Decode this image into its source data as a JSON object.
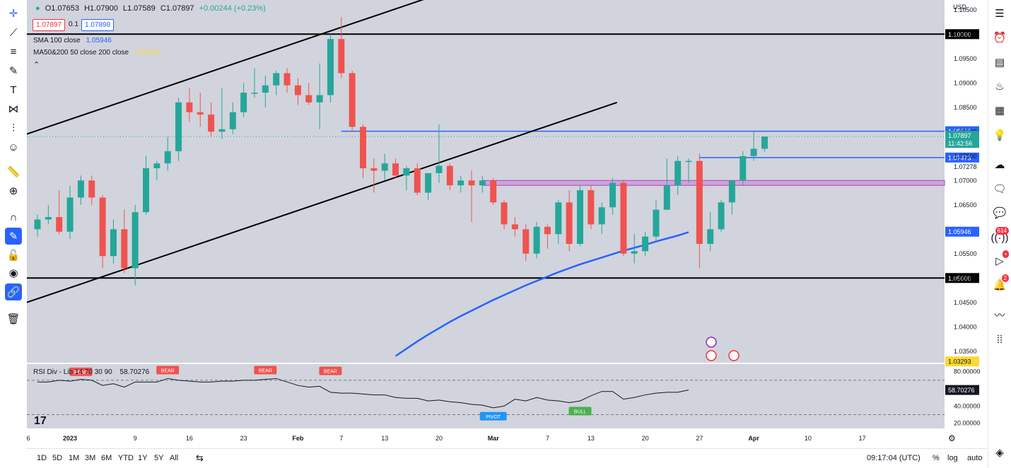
{
  "header": {
    "dot_icon": "status-dot-icon",
    "ohlc": {
      "o": "O1.07653",
      "h": "H1.07900",
      "l": "L1.07589",
      "c": "C1.07897",
      "chg": "+0.00244 (+0.23%)"
    },
    "sell_price": "1.07897",
    "spread": "0.1",
    "buy_price": "1.07898",
    "sma_label": "SMA 100 close",
    "sma_value": "1.05946",
    "ma_label": "MA50&200 50 close 200 close",
    "ma_value": "1.03293",
    "rsi_label": "RSI Div - Lib",
    "rsi_params": "14 70 30 90",
    "rsi_value": "58.70276"
  },
  "colors": {
    "up": "#26a69a",
    "down": "#ef5350",
    "sma": "#2962ff",
    "resistance": "#2962ff",
    "zone": "#ce93d8",
    "channel": "#000000",
    "bg": "#d1d4dc",
    "rsi_line": "#131722"
  },
  "chart_data": {
    "type": "candlestick",
    "symbol_currency": "USD",
    "price_axis": {
      "ticks": [
        "1.10500",
        "1.10000",
        "1.09500",
        "1.09000",
        "1.08500",
        "1.08000",
        "1.07500",
        "1.07000",
        "1.06500",
        "1.06000",
        "1.05500",
        "1.05000",
        "1.04500",
        "1.04000",
        "1.03500"
      ],
      "ylim": [
        1.0325,
        1.107
      ]
    },
    "time_axis": {
      "labels": [
        "26",
        "2023",
        "9",
        "16",
        "23",
        "Feb",
        "7",
        "13",
        "20",
        "Mar",
        "7",
        "13",
        "20",
        "27",
        "Apr",
        "10",
        "17"
      ],
      "label_bar_index": [
        -1,
        3,
        9,
        14,
        19,
        24,
        28,
        32,
        37,
        42,
        47,
        51,
        56,
        61,
        66,
        71,
        76
      ]
    },
    "candles": [
      {
        "o": 1.06,
        "h": 1.063,
        "l": 1.0585,
        "c": 1.062
      },
      {
        "o": 1.062,
        "h": 1.065,
        "l": 1.061,
        "c": 1.0625
      },
      {
        "o": 1.0625,
        "h": 1.068,
        "l": 1.059,
        "c": 1.0595
      },
      {
        "o": 1.0595,
        "h": 1.069,
        "l": 1.058,
        "c": 1.0665
      },
      {
        "o": 1.0665,
        "h": 1.071,
        "l": 1.065,
        "c": 1.07
      },
      {
        "o": 1.07,
        "h": 1.071,
        "l": 1.065,
        "c": 1.0665
      },
      {
        "o": 1.0665,
        "h": 1.067,
        "l": 1.052,
        "c": 1.0545
      },
      {
        "o": 1.0545,
        "h": 1.062,
        "l": 1.053,
        "c": 1.06
      },
      {
        "o": 1.06,
        "h": 1.064,
        "l": 1.051,
        "c": 1.052
      },
      {
        "o": 1.052,
        "h": 1.065,
        "l": 1.0485,
        "c": 1.0635
      },
      {
        "o": 1.0635,
        "h": 1.075,
        "l": 1.063,
        "c": 1.0725
      },
      {
        "o": 1.0725,
        "h": 1.074,
        "l": 1.07,
        "c": 1.0735
      },
      {
        "o": 1.0735,
        "h": 1.079,
        "l": 1.072,
        "c": 1.076
      },
      {
        "o": 1.076,
        "h": 1.087,
        "l": 1.074,
        "c": 1.086
      },
      {
        "o": 1.086,
        "h": 1.089,
        "l": 1.082,
        "c": 1.084
      },
      {
        "o": 1.084,
        "h": 1.088,
        "l": 1.081,
        "c": 1.0835
      },
      {
        "o": 1.0835,
        "h": 1.086,
        "l": 1.079,
        "c": 1.08
      },
      {
        "o": 1.08,
        "h": 1.089,
        "l": 1.0785,
        "c": 1.0805
      },
      {
        "o": 1.0805,
        "h": 1.086,
        "l": 1.0795,
        "c": 1.084
      },
      {
        "o": 1.084,
        "h": 1.09,
        "l": 1.083,
        "c": 1.088
      },
      {
        "o": 1.088,
        "h": 1.093,
        "l": 1.087,
        "c": 1.088
      },
      {
        "o": 1.088,
        "h": 1.0915,
        "l": 1.085,
        "c": 1.0895
      },
      {
        "o": 1.0895,
        "h": 1.0925,
        "l": 1.0875,
        "c": 1.092
      },
      {
        "o": 1.092,
        "h": 1.093,
        "l": 1.088,
        "c": 1.0895
      },
      {
        "o": 1.0895,
        "h": 1.091,
        "l": 1.0855,
        "c": 1.0875
      },
      {
        "o": 1.0875,
        "h": 1.09,
        "l": 1.0855,
        "c": 1.086
      },
      {
        "o": 1.086,
        "h": 1.094,
        "l": 1.0805,
        "c": 1.0875
      },
      {
        "o": 1.0875,
        "h": 1.1,
        "l": 1.086,
        "c": 1.099
      },
      {
        "o": 1.099,
        "h": 1.1035,
        "l": 1.091,
        "c": 1.092
      },
      {
        "o": 1.092,
        "h": 1.0925,
        "l": 1.08,
        "c": 1.081
      },
      {
        "o": 1.081,
        "h": 1.0815,
        "l": 1.0705,
        "c": 1.0725
      },
      {
        "o": 1.0725,
        "h": 1.0745,
        "l": 1.0675,
        "c": 1.072
      },
      {
        "o": 1.072,
        "h": 1.0755,
        "l": 1.07,
        "c": 1.0735
      },
      {
        "o": 1.0735,
        "h": 1.0745,
        "l": 1.0705,
        "c": 1.071
      },
      {
        "o": 1.071,
        "h": 1.073,
        "l": 1.068,
        "c": 1.0725
      },
      {
        "o": 1.0725,
        "h": 1.0735,
        "l": 1.067,
        "c": 1.0675
      },
      {
        "o": 1.0675,
        "h": 1.0715,
        "l": 1.066,
        "c": 1.0715
      },
      {
        "o": 1.0715,
        "h": 1.0815,
        "l": 1.0695,
        "c": 1.073
      },
      {
        "o": 1.073,
        "h": 1.0735,
        "l": 1.068,
        "c": 1.069
      },
      {
        "o": 1.069,
        "h": 1.071,
        "l": 1.0675,
        "c": 1.07
      },
      {
        "o": 1.07,
        "h": 1.072,
        "l": 1.0615,
        "c": 1.069
      },
      {
        "o": 1.069,
        "h": 1.071,
        "l": 1.0675,
        "c": 1.07
      },
      {
        "o": 1.07,
        "h": 1.0705,
        "l": 1.065,
        "c": 1.0655
      },
      {
        "o": 1.0655,
        "h": 1.066,
        "l": 1.06,
        "c": 1.061
      },
      {
        "o": 1.061,
        "h": 1.0625,
        "l": 1.0585,
        "c": 1.06
      },
      {
        "o": 1.06,
        "h": 1.061,
        "l": 1.0535,
        "c": 1.055
      },
      {
        "o": 1.055,
        "h": 1.0615,
        "l": 1.054,
        "c": 1.0605
      },
      {
        "o": 1.0605,
        "h": 1.061,
        "l": 1.056,
        "c": 1.059
      },
      {
        "o": 1.059,
        "h": 1.066,
        "l": 1.057,
        "c": 1.0655
      },
      {
        "o": 1.0655,
        "h": 1.068,
        "l": 1.0555,
        "c": 1.057
      },
      {
        "o": 1.057,
        "h": 1.069,
        "l": 1.0565,
        "c": 1.068
      },
      {
        "o": 1.068,
        "h": 1.069,
        "l": 1.06,
        "c": 1.061
      },
      {
        "o": 1.061,
        "h": 1.0655,
        "l": 1.059,
        "c": 1.0645
      },
      {
        "o": 1.0645,
        "h": 1.0705,
        "l": 1.063,
        "c": 1.0695
      },
      {
        "o": 1.0695,
        "h": 1.07,
        "l": 1.0545,
        "c": 1.055
      },
      {
        "o": 1.055,
        "h": 1.059,
        "l": 1.053,
        "c": 1.0555
      },
      {
        "o": 1.0555,
        "h": 1.0595,
        "l": 1.0545,
        "c": 1.0585
      },
      {
        "o": 1.0585,
        "h": 1.066,
        "l": 1.0575,
        "c": 1.064
      },
      {
        "o": 1.064,
        "h": 1.0745,
        "l": 1.064,
        "c": 1.069
      },
      {
        "o": 1.069,
        "h": 1.075,
        "l": 1.067,
        "c": 1.074
      },
      {
        "o": 1.074,
        "h": 1.0745,
        "l": 1.0695,
        "c": 1.074
      },
      {
        "o": 1.074,
        "h": 1.0755,
        "l": 1.052,
        "c": 1.057
      },
      {
        "o": 1.057,
        "h": 1.0635,
        "l": 1.0555,
        "c": 1.06
      },
      {
        "o": 1.06,
        "h": 1.066,
        "l": 1.0595,
        "c": 1.0655
      },
      {
        "o": 1.0655,
        "h": 1.07,
        "l": 1.063,
        "c": 1.07
      },
      {
        "o": 1.07,
        "h": 1.076,
        "l": 1.069,
        "c": 1.075
      },
      {
        "o": 1.075,
        "h": 1.08,
        "l": 1.074,
        "c": 1.0765
      },
      {
        "o": 1.0765,
        "h": 1.079,
        "l": 1.0759,
        "c": 1.079
      }
    ],
    "sma100": {
      "from_bar": 33,
      "values": [
        1.034,
        1.0355,
        1.037,
        1.0384,
        1.0397,
        1.041,
        1.0422,
        1.0433,
        1.0444,
        1.0455,
        1.0465,
        1.0475,
        1.0485,
        1.0494,
        1.0503,
        1.0512,
        1.052,
        1.0528,
        1.0535,
        1.0542,
        1.0549,
        1.0556,
        1.0562,
        1.0568,
        1.0575,
        1.0581,
        1.0587,
        1.0594
      ]
    },
    "horizontal_levels": [
      {
        "price": 1.1,
        "label": "1.10000",
        "color": "#000000",
        "from_bar": -1
      },
      {
        "price": 1.0801,
        "label": "1.08019",
        "color": "#2962ff",
        "from_bar": 28
      },
      {
        "price": 1.0747,
        "label": "1.07473",
        "color": "#2962ff",
        "from_bar": 61
      },
      {
        "price": 1.05,
        "label": "1.05000",
        "color": "#000000",
        "from_bar": -1
      }
    ],
    "zone": {
      "top": 1.07,
      "bottom": 1.069,
      "from_bar": 41
    },
    "channel_lines": [
      {
        "x0": -1.0,
        "y0": 1.0795,
        "x1": 37.4,
        "y1": 1.1085
      },
      {
        "x0": -1.0,
        "y0": 1.045,
        "x1": 53.4,
        "y1": 1.086
      }
    ],
    "last_price": {
      "label": "1.07897",
      "countdown": "11:42:56"
    },
    "price_labels_extra": [
      {
        "price": 1.0728,
        "label": "1.07278"
      },
      {
        "price": 1.0595,
        "label": "1.05946",
        "color": "#2962ff"
      },
      {
        "price": 1.0329,
        "label": "1.03293",
        "color": "#fdd835"
      }
    ],
    "rsi": {
      "ticks": [
        "80.00000",
        "40.00000",
        "20.00000"
      ],
      "ylim": [
        14,
        88
      ],
      "upper": 70,
      "lower": 30,
      "values": [
        68,
        68,
        70,
        69,
        71,
        70,
        64,
        66,
        62,
        68,
        68,
        68,
        72,
        70,
        69,
        68,
        68,
        69,
        69,
        70,
        70,
        71,
        72,
        68,
        64,
        62,
        63,
        56,
        55,
        55,
        54,
        53,
        53,
        50,
        49,
        49,
        46,
        47,
        45,
        44,
        42,
        41,
        38,
        40,
        48,
        46,
        50,
        47,
        46,
        44,
        46,
        52,
        57,
        57,
        48,
        50,
        53,
        55,
        56,
        56,
        58.7
      ],
      "signals": [
        {
          "bar": 4,
          "text": "BEAR",
          "pos": "above",
          "value": 70
        },
        {
          "bar": 12,
          "text": "BEAR",
          "pos": "above",
          "value": 72
        },
        {
          "bar": 21,
          "text": "BEAR",
          "pos": "above",
          "value": 72
        },
        {
          "bar": 27,
          "text": "BEAR",
          "pos": "above",
          "value": 71
        },
        {
          "bar": 42,
          "text": "PIVOT",
          "pos": "below",
          "value": 38
        },
        {
          "bar": 50,
          "text": "BULL",
          "pos": "below",
          "value": 44
        }
      ],
      "value_label": "58.70276"
    },
    "event_icons": [
      "flash-event-icon",
      "us-flag-event-icon",
      "us-flag-event-icon"
    ]
  },
  "bottom_bar": {
    "timeframes": [
      "1D",
      "5D",
      "1M",
      "3M",
      "6M",
      "YTD",
      "1Y",
      "5Y",
      "All"
    ],
    "compare_icon": "calendar-range-icon",
    "time": "09:17:04 (UTC)",
    "percent": "%",
    "log": "log",
    "auto": "auto"
  },
  "left_tools": [
    "crosshair-icon",
    "trend-line-icon",
    "fib-icon",
    "brush-icon",
    "text-icon",
    "pattern-icon",
    "prediction-icon",
    "emoji-icon",
    "ruler-icon",
    "zoom-in-icon",
    "magnet-icon",
    "lock-drawing-icon",
    "unlock-icon",
    "eye-icon",
    "link-icon",
    "trash-icon"
  ],
  "right_tools": [
    "watchlist-icon",
    "alarm-clock-icon",
    "data-window-icon",
    "hotlist-icon",
    "calendar-icon",
    "idea-bulb-icon",
    "chat-icon",
    "chats-icon",
    "messages-icon",
    "streams-icon",
    "notifications-icon",
    "bell-icon",
    "pulse-icon",
    "dots-grid-icon",
    "layers-icon"
  ],
  "right_badges": {
    "streams": "614",
    "bell": "2"
  }
}
